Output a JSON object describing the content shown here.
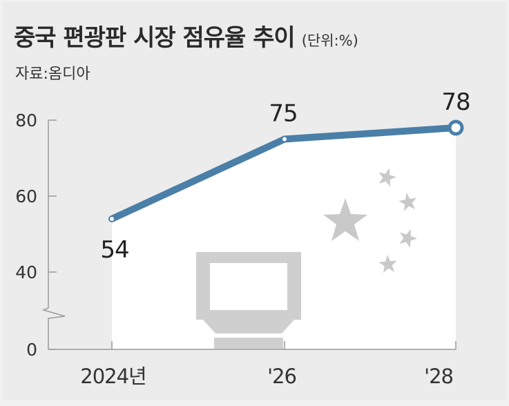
{
  "header": {
    "title": "중국 편광판 시장 점유율 추이",
    "unit": "(단위:%)",
    "source": "자료:옴디아"
  },
  "chart_data": {
    "type": "line",
    "categories": [
      "2024년",
      "'26",
      "'28"
    ],
    "values": [
      54,
      75,
      78
    ],
    "y_ticks": [
      "80",
      "60",
      "40",
      "0"
    ],
    "axis_break": true,
    "line_color": "#4a7fa8",
    "title": "",
    "xlabel": "",
    "ylabel": ""
  }
}
